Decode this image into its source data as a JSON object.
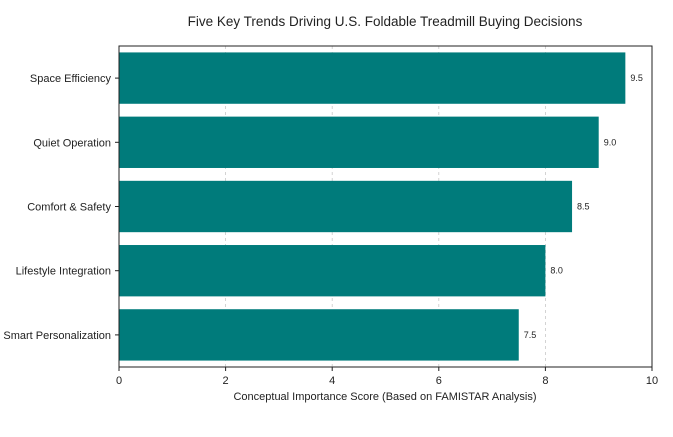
{
  "chart_data": {
    "type": "bar",
    "orientation": "horizontal",
    "title": "Five Key Trends Driving U.S. Foldable Treadmill Buying Decisions",
    "xlabel": "Conceptual Importance Score (Based on FAMISTAR Analysis)",
    "ylabel": "",
    "categories": [
      "Space Efficiency",
      "Quiet Operation",
      "Comfort & Safety",
      "Lifestyle Integration",
      "Smart Personalization"
    ],
    "values": [
      9.5,
      9.0,
      8.5,
      8.0,
      7.5
    ],
    "value_labels": [
      "9.5",
      "9.0",
      "8.5",
      "8.0",
      "7.5"
    ],
    "xlim": [
      0,
      10
    ],
    "xticks": [
      0,
      2,
      4,
      6,
      8,
      10
    ],
    "xtick_labels": [
      "0",
      "2",
      "4",
      "6",
      "8",
      "10"
    ],
    "grid": "x dashed",
    "legend": "none",
    "bar_color": "#007b7b",
    "grid_color": "#c8c8c8",
    "axis_color": "#222222"
  }
}
